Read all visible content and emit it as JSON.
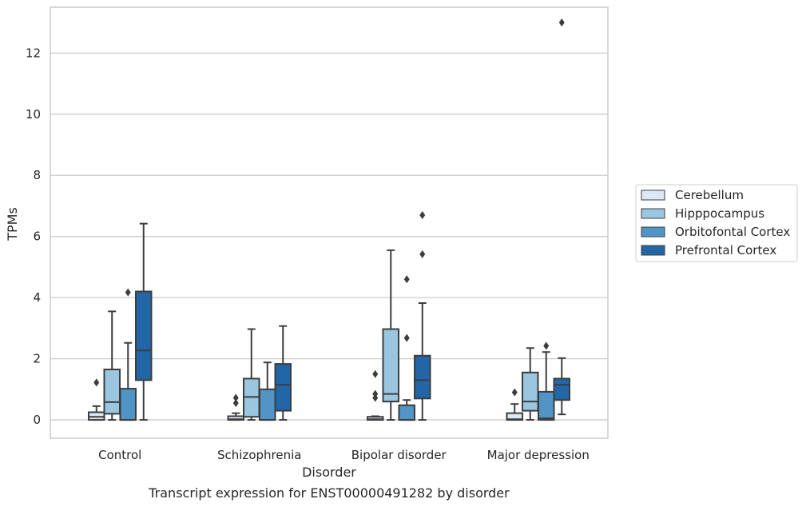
{
  "caption": "Transcript expression for ENST00000491282 by disorder",
  "chart_data": {
    "type": "box",
    "xlabel": "Disorder",
    "ylabel": "TPMs",
    "categories": [
      "Control",
      "Schizophrenia",
      "Bipolar disorder",
      "Major depression"
    ],
    "ylim": [
      -0.6,
      13.5
    ],
    "yticks": [
      0,
      2,
      4,
      6,
      8,
      10,
      12
    ],
    "grid": "horizontal",
    "legend_position": "right",
    "series": [
      {
        "name": "Cerebellum",
        "color": "#dbe8f5",
        "boxes": [
          {
            "whislo": 0,
            "q1": 0,
            "med": 0.1,
            "q3": 0.25,
            "whishi": 0.45,
            "fliers": [
              1.22
            ]
          },
          {
            "whislo": 0,
            "q1": 0,
            "med": 0.02,
            "q3": 0.12,
            "whishi": 0.22,
            "fliers": [
              0.55,
              0.72
            ]
          },
          {
            "whislo": 0,
            "q1": 0,
            "med": 0.02,
            "q3": 0.1,
            "whishi": 0.12,
            "fliers": [
              0.72,
              0.85,
              1.5
            ]
          },
          {
            "whislo": 0,
            "q1": 0,
            "med": 0.02,
            "q3": 0.22,
            "whishi": 0.52,
            "fliers": [
              0.9
            ]
          }
        ]
      },
      {
        "name": "Hipppocampus",
        "color": "#9ac6df",
        "boxes": [
          {
            "whislo": 0,
            "q1": 0.2,
            "med": 0.58,
            "q3": 1.65,
            "whishi": 3.55,
            "fliers": []
          },
          {
            "whislo": 0,
            "q1": 0.1,
            "med": 0.75,
            "q3": 1.35,
            "whishi": 2.97,
            "fliers": []
          },
          {
            "whislo": 0,
            "q1": 0.6,
            "med": 0.85,
            "q3": 2.97,
            "whishi": 5.55,
            "fliers": []
          },
          {
            "whislo": 0,
            "q1": 0.3,
            "med": 0.6,
            "q3": 1.55,
            "whishi": 2.35,
            "fliers": []
          }
        ]
      },
      {
        "name": "Orbitofontal Cortex",
        "color": "#5195c6",
        "boxes": [
          {
            "whislo": 0,
            "q1": 0,
            "med": 0,
            "q3": 1.02,
            "whishi": 2.52,
            "fliers": [
              4.17
            ]
          },
          {
            "whislo": 0,
            "q1": 0,
            "med": 0,
            "q3": 1.0,
            "whishi": 1.88,
            "fliers": []
          },
          {
            "whislo": 0,
            "q1": 0,
            "med": 0,
            "q3": 0.48,
            "whishi": 0.65,
            "fliers": [
              2.68,
              4.6
            ]
          },
          {
            "whislo": 0,
            "q1": 0,
            "med": 0.05,
            "q3": 0.92,
            "whishi": 2.22,
            "fliers": [
              2.42
            ]
          }
        ]
      },
      {
        "name": "Prefrontal Cortex",
        "color": "#2266a8",
        "boxes": [
          {
            "whislo": 0,
            "q1": 1.3,
            "med": 2.27,
            "q3": 4.2,
            "whishi": 6.42,
            "fliers": []
          },
          {
            "whislo": 0,
            "q1": 0.3,
            "med": 1.15,
            "q3": 1.83,
            "whishi": 3.07,
            "fliers": []
          },
          {
            "whislo": 0,
            "q1": 0.7,
            "med": 1.3,
            "q3": 2.1,
            "whishi": 3.82,
            "fliers": [
              5.42,
              6.7
            ]
          },
          {
            "whislo": 0.18,
            "q1": 0.65,
            "med": 1.15,
            "q3": 1.35,
            "whishi": 2.02,
            "fliers": [
              13.0
            ]
          }
        ]
      }
    ]
  }
}
